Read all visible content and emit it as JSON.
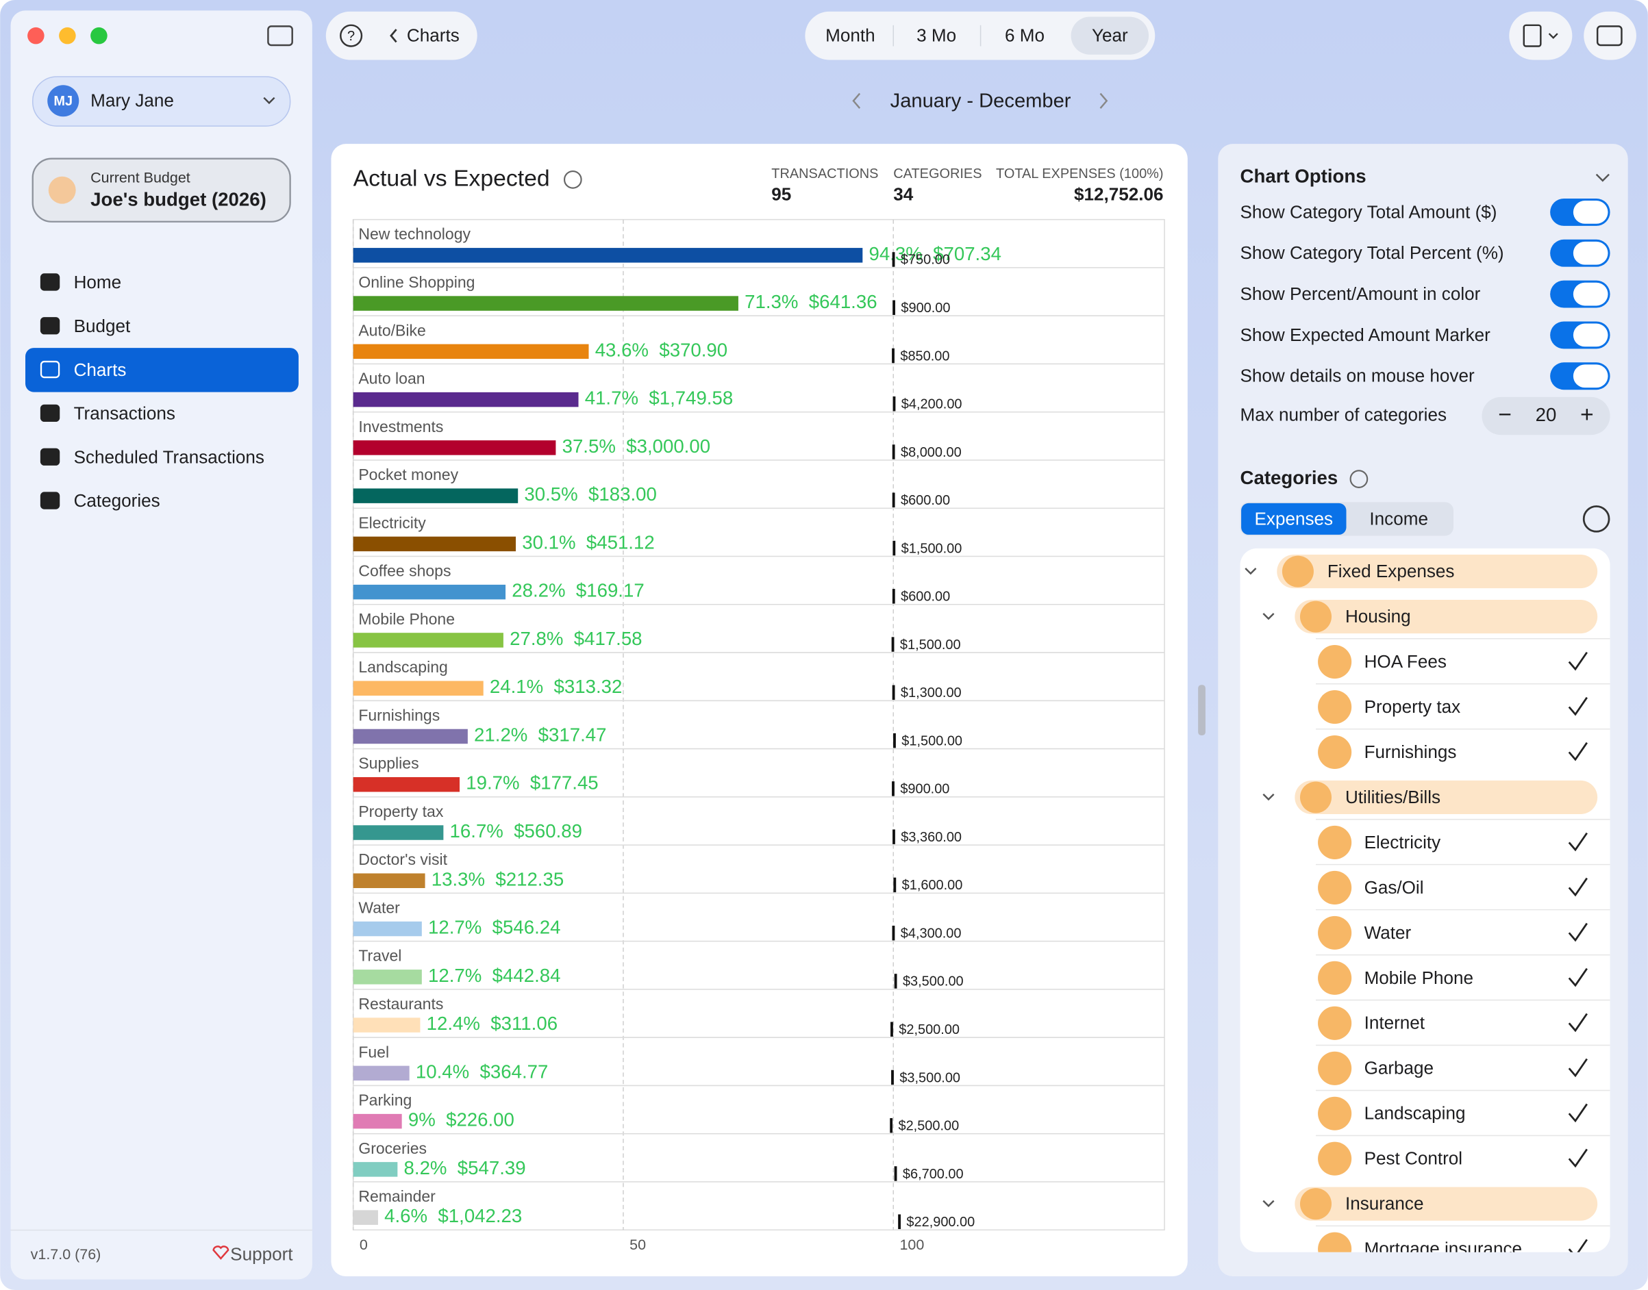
{
  "sidebar": {
    "initials": "MJ",
    "user": "Mary Jane",
    "budget_label": "Current Budget",
    "budget_name": "Joe's budget (2026)",
    "nav": [
      "Home",
      "Budget",
      "Charts",
      "Transactions",
      "Scheduled Transactions",
      "Categories"
    ],
    "selected_nav": 2,
    "version": "v1.7.0 (76)",
    "support": "Support"
  },
  "toolbar": {
    "back": "Charts",
    "periods": [
      "Month",
      "3 Mo",
      "6 Mo",
      "Year"
    ],
    "selected_period": 3,
    "range": "January - December"
  },
  "chart_data": {
    "type": "bar",
    "orientation": "horizontal",
    "title": "Actual vs Expected",
    "stats": [
      {
        "label": "TRANSACTIONS",
        "value": 95
      },
      {
        "label": "CATEGORIES",
        "value": 34
      },
      {
        "label": "TOTAL EXPENSES (100%)",
        "value": {
          "value": 12752.06,
          "label": "$12,752.06"
        }
      }
    ],
    "categories": [
      "New technology",
      "Online Shopping",
      "Auto/Bike",
      "Auto loan",
      "Investments",
      "Pocket money",
      "Electricity",
      "Coffee shops",
      "Mobile Phone",
      "Landscaping",
      "Furnishings",
      "Supplies",
      "Property tax",
      "Doctor's visit",
      "Water",
      "Travel",
      "Restaurants",
      "Fuel",
      "Parking",
      "Groceries",
      "Remainder"
    ],
    "values": [
      94.3,
      71.3,
      43.6,
      41.7,
      37.5,
      30.5,
      30.1,
      28.2,
      27.8,
      24.1,
      21.2,
      19.7,
      16.7,
      13.3,
      12.7,
      12.7,
      12.4,
      10.4,
      9,
      8.2,
      4.6
    ],
    "value_labels": [
      "94.3%",
      "71.3%",
      "43.6%",
      "41.7%",
      "37.5%",
      "30.5%",
      "30.1%",
      "28.2%",
      "27.8%",
      "24.1%",
      "21.2%",
      "19.7%",
      "16.7%",
      "13.3%",
      "12.7%",
      "12.7%",
      "12.4%",
      "10.4%",
      "9%",
      "8.2%",
      "4.6%"
    ],
    "amounts": [
      707.34,
      641.36,
      370.9,
      1749.58,
      3000.0,
      183.0,
      451.12,
      169.17,
      417.58,
      313.32,
      317.47,
      177.45,
      560.89,
      212.35,
      546.24,
      442.84,
      311.06,
      364.77,
      226.0,
      547.39,
      1042.23
    ],
    "amount_labels": [
      "$707.34",
      "$641.36",
      "$370.90",
      "$1,749.58",
      "$3,000.00",
      "$183.00",
      "$451.12",
      "$169.17",
      "$417.58",
      "$313.32",
      "$317.47",
      "$177.45",
      "$560.89",
      "$212.35",
      "$546.24",
      "$442.84",
      "$311.06",
      "$364.77",
      "$226.00",
      "$547.39",
      "$1,042.23"
    ],
    "expected": [
      750,
      900,
      850,
      4200,
      8000,
      600,
      1500,
      600,
      1500,
      1300,
      1500,
      900,
      3360,
      1600,
      4300,
      3500,
      2500,
      3500,
      2500,
      6700,
      22900
    ],
    "expected_labels": [
      "$750.00",
      "$900.00",
      "$850.00",
      "$4,200.00",
      "$8,000.00",
      "$600.00",
      "$1,500.00",
      "$600.00",
      "$1,500.00",
      "$1,300.00",
      "$1,500.00",
      "$900.00",
      "$3,360.00",
      "$1,600.00",
      "$4,300.00",
      "$3,500.00",
      "$2,500.00",
      "$3,500.00",
      "$2,500.00",
      "$6,700.00",
      "$22,900.00"
    ],
    "colors": [
      "#0d4fa3",
      "#4a9a26",
      "#e8840f",
      "#5a2a8e",
      "#b3002d",
      "#04665e",
      "#8a4f00",
      "#4393cf",
      "#87c443",
      "#fdb863",
      "#8073ac",
      "#d73027",
      "#35978f",
      "#bf812d",
      "#a6cbec",
      "#a6dba0",
      "#ffe0b8",
      "#b2abd2",
      "#e07bb4",
      "#80cdc1",
      "#d6d6d6"
    ],
    "label_color": "#34c759",
    "xlim": [
      0,
      100
    ],
    "xticks": [
      0,
      50,
      100
    ],
    "grid": true
  },
  "options": {
    "title": "Chart Options",
    "toggles": [
      {
        "label": "Show Category Total Amount ($)",
        "on": true
      },
      {
        "label": "Show Category Total Percent (%)",
        "on": true
      },
      {
        "label": "Show Percent/Amount in color",
        "on": true
      },
      {
        "label": "Show Expected Amount Marker",
        "on": true
      },
      {
        "label": "Show details on mouse hover",
        "on": true
      }
    ],
    "max_label": "Max number of categories",
    "max_value": 20
  },
  "categories_panel": {
    "title": "Categories",
    "tabs": [
      "Expenses",
      "Income"
    ],
    "selected_tab": 0,
    "tree": [
      {
        "label": "Fixed Expenses",
        "level": 0
      },
      {
        "label": "Housing",
        "level": 1
      },
      {
        "label": "HOA Fees",
        "level": 2,
        "checked": true
      },
      {
        "label": "Property tax",
        "level": 2,
        "checked": true
      },
      {
        "label": "Furnishings",
        "level": 2,
        "checked": true
      },
      {
        "label": "Utilities/Bills",
        "level": 1
      },
      {
        "label": "Electricity",
        "level": 2,
        "checked": true
      },
      {
        "label": "Gas/Oil",
        "level": 2,
        "checked": true
      },
      {
        "label": "Water",
        "level": 2,
        "checked": true
      },
      {
        "label": "Mobile Phone",
        "level": 2,
        "checked": true
      },
      {
        "label": "Internet",
        "level": 2,
        "checked": true
      },
      {
        "label": "Garbage",
        "level": 2,
        "checked": true
      },
      {
        "label": "Landscaping",
        "level": 2,
        "checked": true
      },
      {
        "label": "Pest Control",
        "level": 2,
        "checked": true
      },
      {
        "label": "Insurance",
        "level": 1
      },
      {
        "label": "Mortgage insurance",
        "level": 2,
        "checked": true
      }
    ]
  }
}
